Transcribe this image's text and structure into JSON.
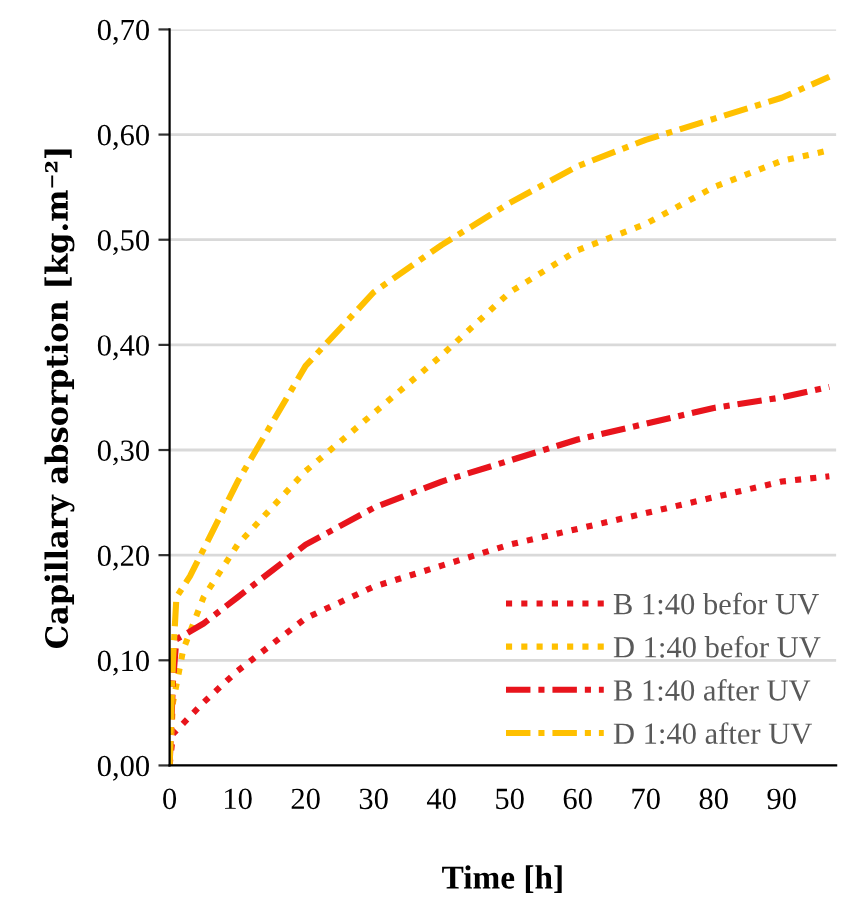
{
  "chart_data": {
    "type": "line",
    "xlabel": "Time [h]",
    "ylabel": "Capillary absorption [kg.m⁻²]",
    "xlim": [
      0,
      98
    ],
    "xticks": [
      0,
      10,
      20,
      30,
      40,
      50,
      60,
      70,
      80,
      90
    ],
    "ylim": [
      0,
      0.7
    ],
    "yticks": [
      {
        "value": 0,
        "label": "0,00"
      },
      {
        "value": 0.1,
        "label": "0,10"
      },
      {
        "value": 0.2,
        "label": "0,20"
      },
      {
        "value": 0.3,
        "label": "0,30"
      },
      {
        "value": 0.4,
        "label": "0,40"
      },
      {
        "value": 0.5,
        "label": "0,50"
      },
      {
        "value": 0.6,
        "label": "0,60"
      },
      {
        "value": 0.7,
        "label": "0,70"
      }
    ],
    "grid": "y",
    "legend": "bottom right",
    "series": [
      {
        "name": "B 1:40 befor UV",
        "color": "#e8141c",
        "line_style": "dotted",
        "x": [
          0,
          0.5,
          5,
          10,
          20,
          30,
          40,
          50,
          60,
          70,
          80,
          90,
          97
        ],
        "values": [
          0,
          0.03,
          0.06,
          0.09,
          0.14,
          0.17,
          0.19,
          0.21,
          0.225,
          0.24,
          0.255,
          0.27,
          0.275
        ]
      },
      {
        "name": "D 1:40 befor UV",
        "color": "#ffc000",
        "line_style": "dotted",
        "x": [
          0,
          0.5,
          2,
          5,
          10,
          20,
          30,
          40,
          50,
          60,
          70,
          80,
          90,
          97
        ],
        "values": [
          0,
          0.06,
          0.11,
          0.16,
          0.21,
          0.28,
          0.335,
          0.39,
          0.45,
          0.49,
          0.515,
          0.55,
          0.575,
          0.585
        ]
      },
      {
        "name": "B 1:40 after UV",
        "color": "#e8141c",
        "line_style": "dashdot",
        "x": [
          0,
          0.5,
          1,
          5,
          10,
          20,
          30,
          40,
          50,
          60,
          70,
          80,
          90,
          97
        ],
        "values": [
          0,
          0.08,
          0.12,
          0.135,
          0.16,
          0.21,
          0.245,
          0.27,
          0.29,
          0.31,
          0.325,
          0.34,
          0.35,
          0.36
        ]
      },
      {
        "name": "D 1:40 after UV",
        "color": "#ffc000",
        "line_style": "dashdot",
        "x": [
          0,
          0.5,
          1,
          3,
          10,
          20,
          30,
          40,
          50,
          60,
          70,
          80,
          90,
          97
        ],
        "values": [
          0,
          0.1,
          0.16,
          0.18,
          0.27,
          0.38,
          0.45,
          0.495,
          0.535,
          0.57,
          0.595,
          0.615,
          0.635,
          0.655
        ]
      }
    ]
  }
}
